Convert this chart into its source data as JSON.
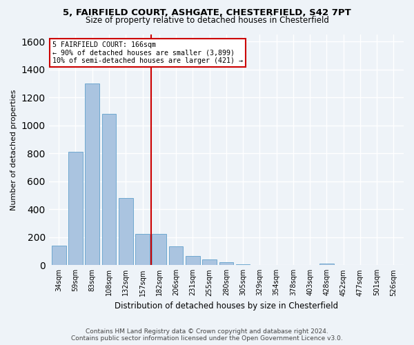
{
  "title": "5, FAIRFIELD COURT, ASHGATE, CHESTERFIELD, S42 7PT",
  "subtitle": "Size of property relative to detached houses in Chesterfield",
  "xlabel": "Distribution of detached houses by size in Chesterfield",
  "ylabel": "Number of detached properties",
  "footer_line1": "Contains HM Land Registry data © Crown copyright and database right 2024.",
  "footer_line2": "Contains public sector information licensed under the Open Government Licence v3.0.",
  "bar_labels": [
    "34sqm",
    "59sqm",
    "83sqm",
    "108sqm",
    "132sqm",
    "157sqm",
    "182sqm",
    "206sqm",
    "231sqm",
    "255sqm",
    "280sqm",
    "305sqm",
    "329sqm",
    "354sqm",
    "378sqm",
    "403sqm",
    "428sqm",
    "452sqm",
    "477sqm",
    "501sqm",
    "526sqm"
  ],
  "bar_values": [
    140,
    810,
    1300,
    1080,
    480,
    225,
    225,
    135,
    65,
    40,
    20,
    5,
    0,
    0,
    0,
    0,
    12,
    0,
    0,
    0,
    0
  ],
  "bar_color": "#aac4e0",
  "bar_edgecolor": "#6fa8d0",
  "property_label": "5 FAIRFIELD COURT: 166sqm",
  "annotation_line1": "← 90% of detached houses are smaller (3,899)",
  "annotation_line2": "10% of semi-detached houses are larger (421) →",
  "vline_color": "#cc0000",
  "vline_x": 5.5,
  "ylim": [
    0,
    1650
  ],
  "yticks": [
    0,
    200,
    400,
    600,
    800,
    1000,
    1200,
    1400,
    1600
  ],
  "background_color": "#eef3f8",
  "grid_color": "#ffffff"
}
